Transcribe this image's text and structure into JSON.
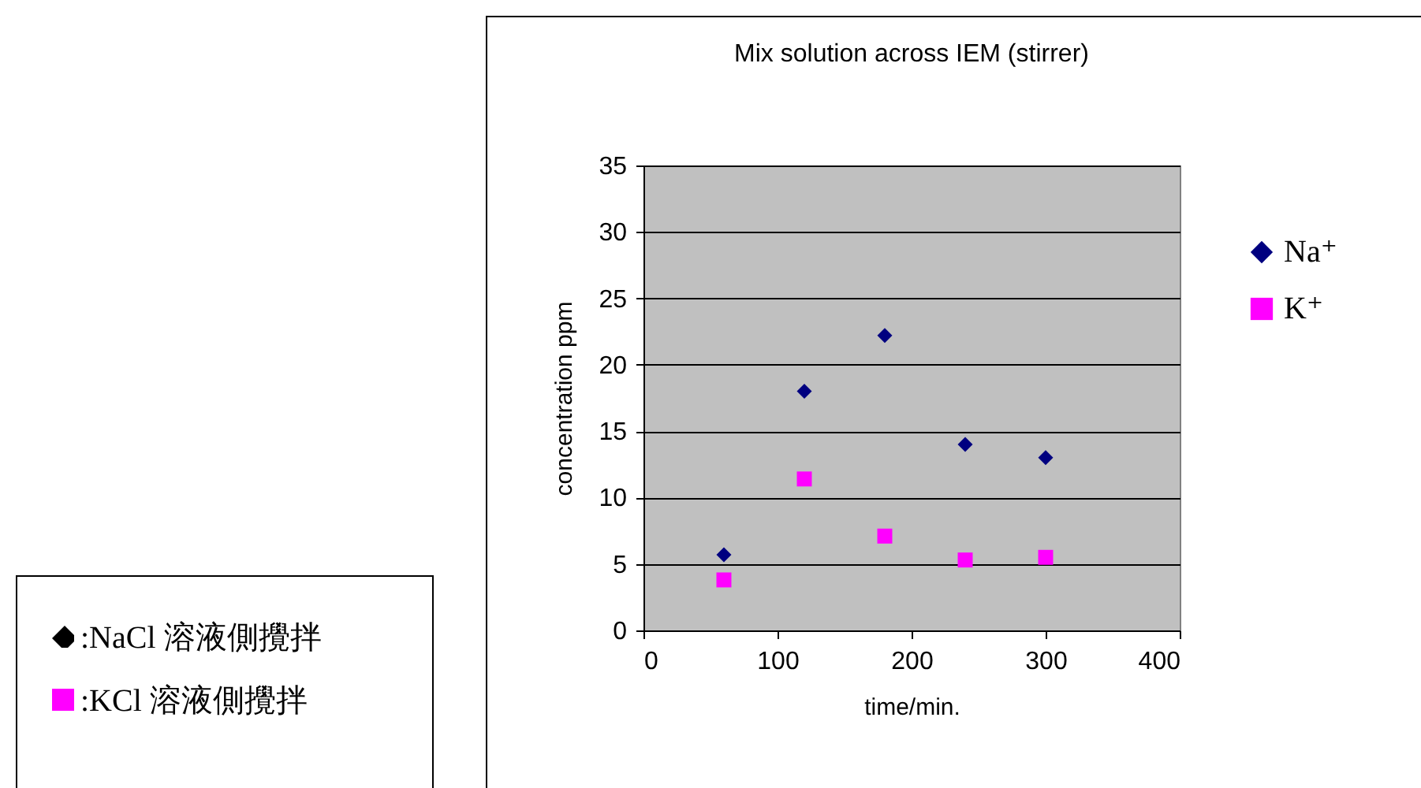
{
  "chart_data": {
    "type": "scatter",
    "title": "Mix solution across IEM (stirrer)",
    "xlabel": "time/min.",
    "ylabel": "concentration ppm",
    "series": [
      {
        "name": "Na⁺",
        "color": "#000080",
        "marker": "diamond",
        "x": [
          60,
          120,
          180,
          240,
          300
        ],
        "values": [
          5.7,
          18.0,
          22.2,
          14.0,
          13.0
        ]
      },
      {
        "name": "K⁺",
        "color": "#ff00ff",
        "marker": "square",
        "x": [
          60,
          120,
          180,
          240,
          300
        ],
        "values": [
          3.8,
          11.4,
          7.1,
          5.3,
          5.5
        ]
      }
    ],
    "xlim": [
      0,
      400
    ],
    "xticks": [
      0,
      100,
      200,
      300,
      400
    ],
    "ylim": [
      0,
      35
    ],
    "yticks": [
      0,
      5,
      10,
      15,
      20,
      25,
      30,
      35
    ],
    "grid": "y",
    "legend": "right",
    "annotations": [
      ":NaCl 溶液側攪拌",
      ":KCl 溶液側攪拌"
    ]
  }
}
